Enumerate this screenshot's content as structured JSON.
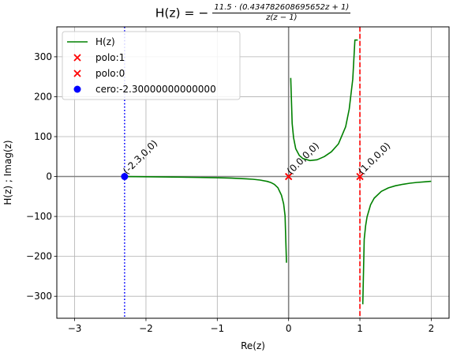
{
  "chart_data": {
    "type": "line",
    "title_lhs": "H(z) = −",
    "title_numerator": "11.5 · (0.434782608695652z + 1)",
    "title_denominator": "z(z − 1)",
    "xlabel": "Re(z)",
    "ylabel": "H(z) ; Imag(z)",
    "xlim": [
      -3.25,
      2.25
    ],
    "ylim": [
      -355,
      375
    ],
    "xticks": [
      -3,
      -2,
      -1,
      0,
      1,
      2
    ],
    "yticks": [
      -300,
      -200,
      -100,
      0,
      100,
      200,
      300
    ],
    "grid": true,
    "legend_position": "upper-left",
    "series": [
      {
        "name": "H(z)",
        "color": "#008000",
        "segments": [
          {
            "x": [
              -2.3,
              -2.0,
              -1.5,
              -1.0,
              -0.8,
              -0.6,
              -0.5,
              -0.4,
              -0.3,
              -0.25,
              -0.2,
              -0.15,
              -0.1,
              -0.07,
              -0.05,
              -0.03
            ],
            "y": [
              0.0,
              -0.41,
              -1.56,
              -2.99,
              -3.99,
              -5.56,
              -6.81,
              -8.76,
              -12.11,
              -14.94,
              -19.56,
              -27.92,
              -46.67,
              -68.6,
              -98.1,
              -216.0
            ]
          },
          {
            "x": [
              0.03,
              0.05,
              0.07,
              0.1,
              0.15,
              0.2,
              0.3,
              0.4,
              0.5,
              0.6,
              0.7,
              0.8,
              0.85,
              0.9,
              0.93,
              0.97
            ],
            "y": [
              247.0,
              133.0,
              97.0,
              70.0,
              53.0,
              45.0,
              40.0,
              42.0,
              50.0,
              62.0,
              82.0,
              125.0,
              169.0,
              244.0,
              342.0,
              342.0
            ]
          },
          {
            "x": [
              1.04,
              1.06,
              1.08,
              1.1,
              1.15,
              1.2,
              1.3,
              1.4,
              1.5,
              1.6,
              1.7,
              1.8,
              1.9,
              2.0
            ],
            "y": [
              -320.0,
              -157.0,
              -123.0,
              -101.0,
              -70.6,
              -54.2,
              -37.1,
              -28.3,
              -23.0,
              -19.4,
              -16.8,
              -14.8,
              -13.3,
              -12.0
            ]
          }
        ]
      }
    ],
    "vlines": [
      {
        "x": -2.3,
        "style": "dotted",
        "color": "#0000ff"
      },
      {
        "x": 1.0,
        "style": "dashed",
        "color": "#ff0000"
      },
      {
        "x": 0.0,
        "style": "solid",
        "color": "#808080"
      }
    ],
    "hlines": [
      {
        "y": 0,
        "style": "solid",
        "color": "#808080"
      }
    ],
    "markers": [
      {
        "name": "polo:1",
        "x": 1,
        "y": 0,
        "symbol": "x",
        "color": "#ff0000"
      },
      {
        "name": "polo:0",
        "x": 0,
        "y": 0,
        "symbol": "x",
        "color": "#ff0000"
      },
      {
        "name": "cero:-2.30000000000000",
        "x": -2.3,
        "y": 0,
        "symbol": "circle",
        "color": "#0000ff"
      }
    ],
    "annotations": [
      {
        "text": "(-2.3,0,0)",
        "x": -2.3,
        "y": 0
      },
      {
        "text": "(0.0,0,0)",
        "x": 0.0,
        "y": 0
      },
      {
        "text": "(1.0,0,0)",
        "x": 1.0,
        "y": 0
      }
    ],
    "legend": [
      "H(z)",
      "polo:1",
      "polo:0",
      "cero:-2.30000000000000"
    ]
  }
}
